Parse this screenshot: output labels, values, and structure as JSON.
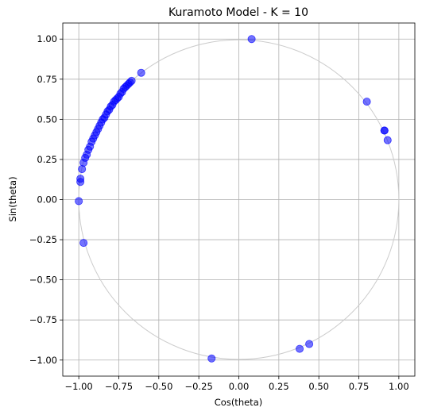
{
  "chart_data": {
    "type": "scatter",
    "title": "Kuramoto Model - K = 10",
    "xlabel": "Cos(theta)",
    "ylabel": "Sin(theta)",
    "xlim": [
      -1.1,
      1.1
    ],
    "ylim": [
      -1.1,
      1.1
    ],
    "xticks": [
      -1.0,
      -0.75,
      -0.5,
      -0.25,
      0.0,
      0.25,
      0.5,
      0.75,
      1.0
    ],
    "xtick_labels": [
      "−1.00",
      "−0.75",
      "−0.50",
      "−0.25",
      "0.00",
      "0.25",
      "0.50",
      "0.75",
      "1.00"
    ],
    "yticks": [
      -1.0,
      -0.75,
      -0.5,
      -0.25,
      0.0,
      0.25,
      0.5,
      0.75,
      1.0
    ],
    "ytick_labels": [
      "−1.00",
      "−0.75",
      "−0.50",
      "−0.25",
      "0.00",
      "0.25",
      "0.50",
      "0.75",
      "1.00"
    ],
    "grid": true,
    "unit_circle": {
      "radius": 1.0,
      "color": "#cccccc"
    },
    "marker_color": "#0000ff",
    "marker_alpha": 0.55,
    "series": [
      {
        "x": [
          0.08,
          0.8,
          0.91,
          0.91,
          0.93,
          -0.17,
          0.38,
          0.44,
          -0.97,
          -1.0,
          -0.99,
          -0.99,
          -0.98,
          -0.61,
          -0.67,
          -0.68,
          -0.69,
          -0.7,
          -0.71,
          -0.72,
          -0.73,
          -0.74,
          -0.75,
          -0.76,
          -0.77,
          -0.78,
          -0.79,
          -0.8,
          -0.81,
          -0.82,
          -0.83,
          -0.84,
          -0.85,
          -0.86,
          -0.87,
          -0.88,
          -0.89,
          -0.9,
          -0.91,
          -0.92,
          -0.93,
          -0.94,
          -0.95,
          -0.96,
          -0.97
        ],
        "y": [
          1.0,
          0.61,
          0.43,
          0.43,
          0.37,
          -0.99,
          -0.93,
          -0.9,
          -0.27,
          -0.01,
          0.11,
          0.13,
          0.19,
          0.79,
          0.74,
          0.73,
          0.72,
          0.71,
          0.7,
          0.69,
          0.67,
          0.66,
          0.64,
          0.63,
          0.62,
          0.61,
          0.59,
          0.58,
          0.56,
          0.55,
          0.53,
          0.51,
          0.5,
          0.48,
          0.46,
          0.44,
          0.42,
          0.4,
          0.38,
          0.36,
          0.33,
          0.31,
          0.28,
          0.26,
          0.23
        ]
      }
    ]
  }
}
